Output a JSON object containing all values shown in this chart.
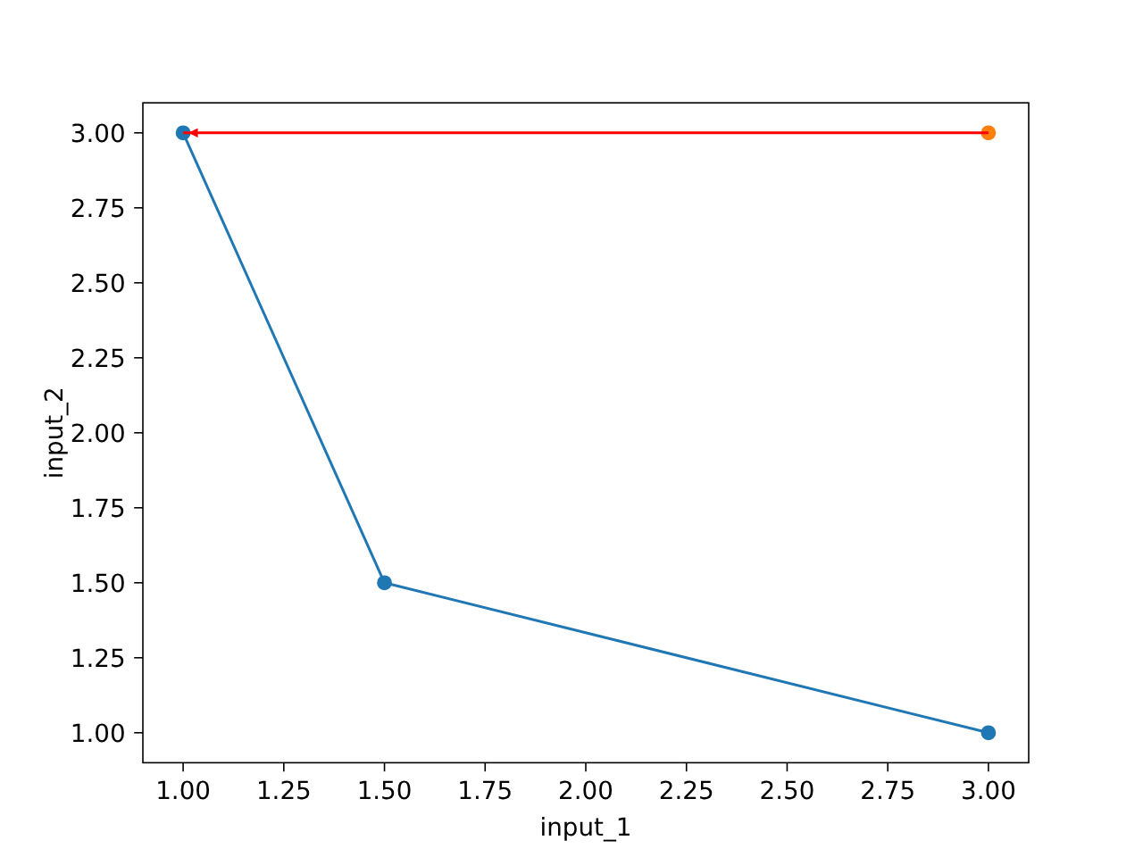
{
  "chart_data": {
    "type": "line",
    "xlabel": "input_1",
    "ylabel": "input_2",
    "xlim": [
      0.9,
      3.1
    ],
    "ylim": [
      0.9,
      3.1
    ],
    "xticks": [
      {
        "value": 1,
        "label": "1.00"
      },
      {
        "value": 1.25,
        "label": "1.25"
      },
      {
        "value": 1.5,
        "label": "1.50"
      },
      {
        "value": 1.75,
        "label": "1.75"
      },
      {
        "value": 2,
        "label": "2.00"
      },
      {
        "value": 2.25,
        "label": "2.25"
      },
      {
        "value": 2.5,
        "label": "2.50"
      },
      {
        "value": 2.75,
        "label": "2.75"
      },
      {
        "value": 3,
        "label": "3.00"
      }
    ],
    "yticks": [
      {
        "value": 1,
        "label": "1.00"
      },
      {
        "value": 1.25,
        "label": "1.25"
      },
      {
        "value": 1.5,
        "label": "1.50"
      },
      {
        "value": 1.75,
        "label": "1.75"
      },
      {
        "value": 2,
        "label": "2.00"
      },
      {
        "value": 2.25,
        "label": "2.25"
      },
      {
        "value": 2.5,
        "label": "2.50"
      },
      {
        "value": 2.75,
        "label": "2.75"
      },
      {
        "value": 3,
        "label": "3.00"
      }
    ],
    "series": [
      {
        "color": "#1f77b4",
        "x": [
          1,
          1.5,
          3
        ],
        "values": [
          3,
          1.5,
          1
        ],
        "marker": "circle"
      },
      {
        "type": "scatter",
        "color": "#ff7f0e",
        "x": [
          3
        ],
        "values": [
          3
        ],
        "marker": "circle"
      },
      {
        "type": "line",
        "color": "#ff0000",
        "x": [
          3,
          1
        ],
        "values": [
          3,
          3
        ],
        "marker": "none"
      }
    ],
    "grid": false
  }
}
